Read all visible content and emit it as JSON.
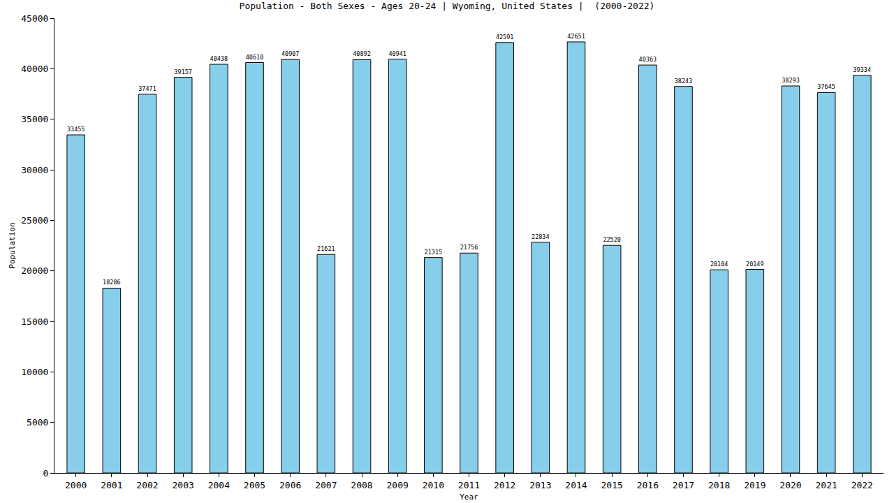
{
  "chart_data": {
    "type": "bar",
    "title": "Population - Both Sexes - Ages 20-24 | Wyoming, United States |  (2000-2022)",
    "x_label": "Year",
    "y_label": "Population",
    "categories": [
      "2000",
      "2001",
      "2002",
      "2003",
      "2004",
      "2005",
      "2006",
      "2007",
      "2008",
      "2009",
      "2010",
      "2011",
      "2012",
      "2013",
      "2014",
      "2015",
      "2016",
      "2017",
      "2018",
      "2019",
      "2020",
      "2021",
      "2022"
    ],
    "values": [
      33455,
      18286,
      37471,
      39157,
      40438,
      40610,
      40907,
      21621,
      40892,
      40941,
      21315,
      21756,
      42591,
      22834,
      42651,
      22520,
      40363,
      38243,
      20104,
      20149,
      38293,
      37645,
      39334
    ],
    "color": "#87ceeb",
    "ylim": [
      0,
      45000
    ],
    "yticks": [
      0,
      5000,
      10000,
      15000,
      20000,
      25000,
      30000,
      35000,
      40000,
      45000
    ],
    "grid": false,
    "data_labels": true
  }
}
